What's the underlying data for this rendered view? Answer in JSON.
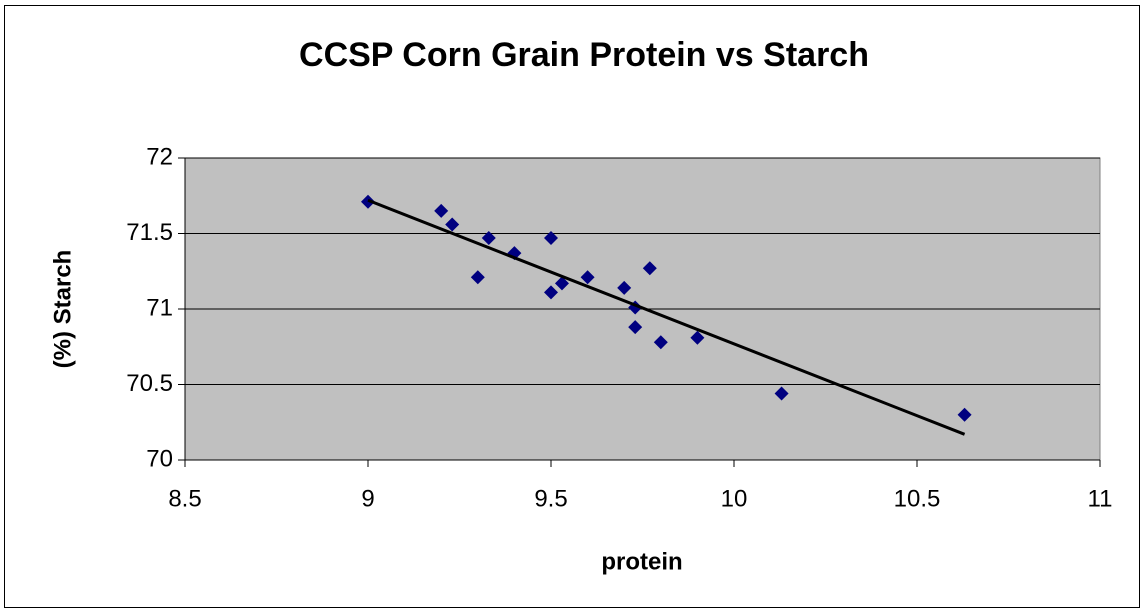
{
  "chart_data": {
    "type": "scatter",
    "title": "CCSP Corn Grain Protein vs Starch",
    "x_label": "protein",
    "y_label": "(%) Starch",
    "x": [
      9.0,
      9.2,
      9.23,
      9.33,
      9.3,
      9.4,
      9.5,
      9.5,
      9.53,
      9.6,
      9.7,
      9.77,
      9.73,
      9.73,
      9.8,
      9.9,
      10.13,
      10.63
    ],
    "values": [
      71.71,
      71.65,
      71.56,
      71.47,
      71.21,
      71.37,
      71.47,
      71.11,
      71.17,
      71.21,
      71.14,
      71.27,
      71.01,
      70.88,
      70.78,
      70.81,
      70.44,
      70.3
    ],
    "color": "#000080",
    "trendline": {
      "x": [
        9.0,
        10.63
      ],
      "y": [
        71.72,
        70.17
      ],
      "color": "#000000"
    },
    "xlim": [
      8.5,
      11
    ],
    "xticks": [
      8.5,
      9,
      9.5,
      10,
      10.5,
      11
    ],
    "ylim": [
      70,
      72
    ],
    "yticks": [
      70,
      70.5,
      71,
      71.5,
      72
    ],
    "grid": true
  }
}
